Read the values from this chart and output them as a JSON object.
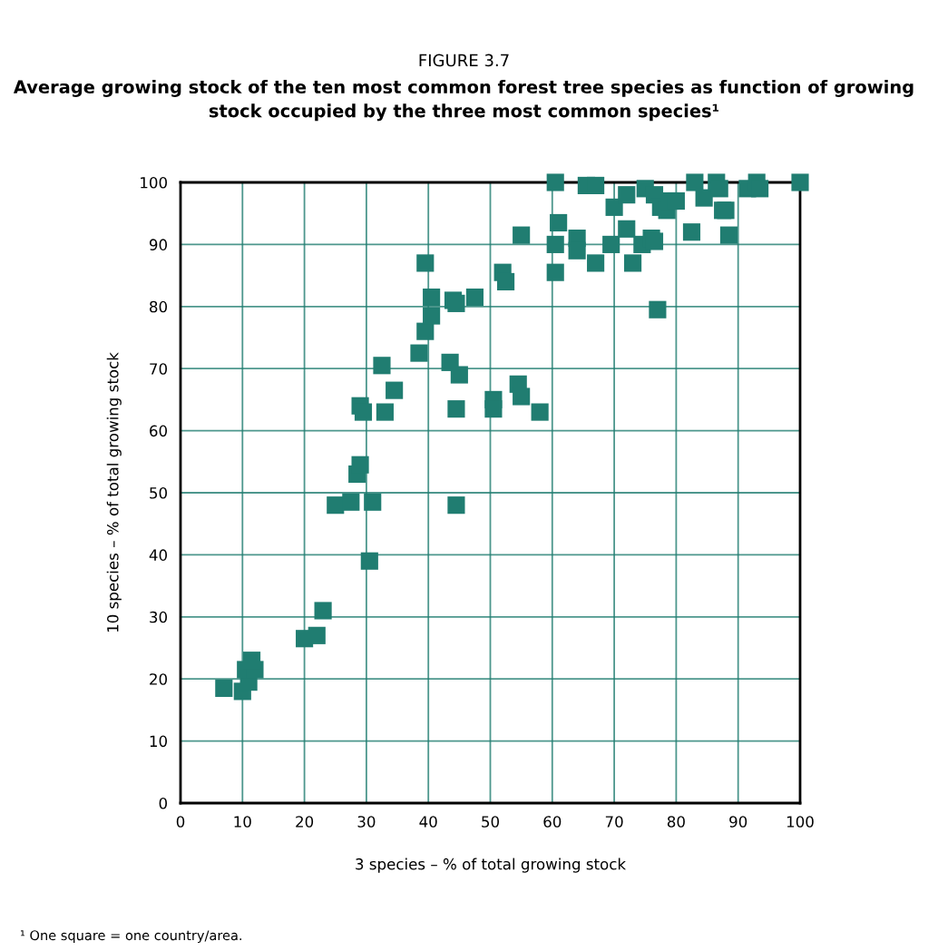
{
  "chart_data": {
    "type": "scatter",
    "title": "FIGURE 3.7",
    "subtitle": "Average growing stock of the ten most common forest tree species as function of growing stock occupied by the three most common species¹",
    "xlabel": "3 species – % of total growing stock",
    "ylabel": "10 species – % of total growing stock",
    "annotations": [
      "¹ One square = one country/area."
    ],
    "series": [
      {
        "color": "#207d71",
        "x": [
          7,
          10,
          11,
          10.5,
          12,
          11.5,
          20,
          22,
          23,
          25,
          27.5,
          28.5,
          29,
          31,
          30.5,
          29,
          29.5,
          32.5,
          33,
          34.5,
          38.5,
          39.5,
          39.5,
          40.5,
          40.5,
          43.5,
          44,
          44.5,
          44.5,
          44.5,
          45,
          47.5,
          50.5,
          50.5,
          52,
          52.5,
          54.5,
          55,
          55,
          58,
          60.5,
          60.5,
          60.5,
          61,
          64,
          64,
          65.5,
          67,
          67,
          69.5,
          70,
          72,
          72,
          73,
          74.5,
          75,
          76,
          76.5,
          76.5,
          77,
          77.5,
          78.5,
          79,
          80,
          82.5,
          83,
          84.5,
          86.5,
          87,
          87.5,
          88,
          88.5,
          91.5,
          93,
          93.5,
          100
        ],
        "values": [
          18.5,
          18,
          19.5,
          21.5,
          21.5,
          23,
          26.5,
          27,
          31,
          48,
          48.5,
          53,
          54.5,
          48.5,
          39,
          64,
          63,
          70.5,
          63,
          66.5,
          72.5,
          76,
          87,
          81.5,
          78.5,
          71,
          81,
          80.5,
          63.5,
          48,
          69,
          81.5,
          65,
          63.5,
          85.5,
          84,
          67.5,
          65.5,
          91.5,
          63,
          90,
          85.5,
          100,
          93.5,
          91,
          89,
          99.5,
          99.5,
          87,
          90,
          96,
          98,
          92.5,
          87,
          90,
          99,
          91,
          90.5,
          98,
          79.5,
          96,
          95.5,
          97,
          97,
          92,
          100,
          97.5,
          100,
          99,
          95.5,
          95.5,
          91.5,
          99,
          100,
          99,
          100
        ]
      }
    ],
    "xlim": [
      0,
      100
    ],
    "ylim": [
      0,
      100
    ],
    "xticks": [
      0,
      10,
      20,
      30,
      40,
      50,
      60,
      70,
      80,
      90,
      100
    ],
    "yticks": [
      0,
      10,
      20,
      30,
      40,
      50,
      60,
      70,
      80,
      90,
      100
    ],
    "grid": true,
    "marker": "square"
  }
}
